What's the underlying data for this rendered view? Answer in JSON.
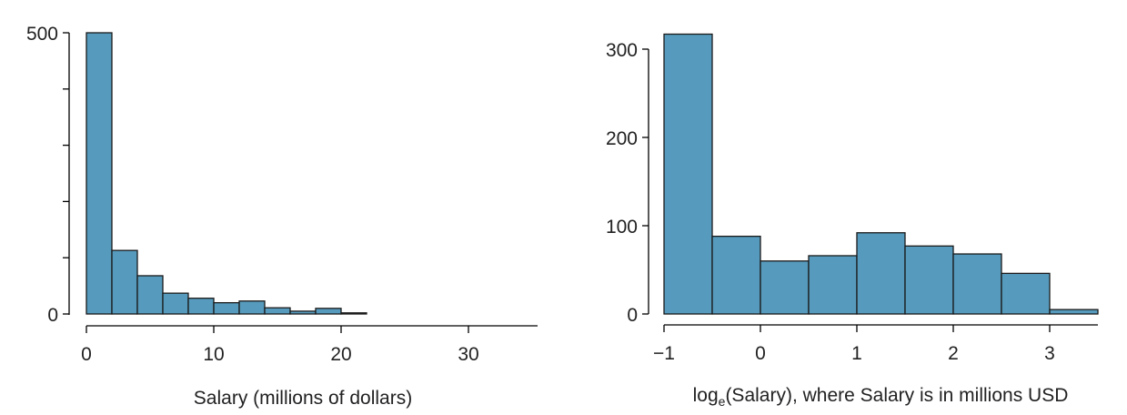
{
  "chart_data": [
    {
      "type": "bar",
      "histogram": true,
      "title": "",
      "xlabel": "Salary (millions of dollars)",
      "ylabel": "",
      "bin_edges": [
        0,
        2,
        4,
        6,
        8,
        10,
        12,
        14,
        16,
        18,
        20,
        22,
        24,
        26,
        28,
        30,
        32,
        34
      ],
      "values": [
        500,
        113,
        68,
        37,
        28,
        20,
        23,
        11,
        5,
        10,
        2,
        0,
        0,
        0,
        0,
        0,
        0
      ],
      "xlim": [
        0,
        35
      ],
      "ylim": [
        0,
        500
      ],
      "x_ticks": [
        "0",
        "10",
        "20",
        "30"
      ],
      "y_ticks": [
        "0",
        "500"
      ],
      "y_minor_ticks": [
        100,
        200,
        300,
        400
      ],
      "grid": false
    },
    {
      "type": "bar",
      "histogram": true,
      "title": "",
      "xlabel": "log(Salary), where Salary is in millions USD",
      "xlabel_parts": {
        "pre": "log",
        "sub": "e",
        "post": "(Salary), where Salary is in millions USD"
      },
      "ylabel": "",
      "bin_edges": [
        -1,
        -0.5,
        0,
        0.5,
        1,
        1.5,
        2,
        2.5,
        3,
        3.5
      ],
      "values": [
        317,
        88,
        60,
        66,
        92,
        77,
        68,
        46,
        5
      ],
      "xlim": [
        -1,
        3.5
      ],
      "ylim": [
        0,
        300
      ],
      "x_ticks": [
        "−1",
        "0",
        "1",
        "2",
        "3"
      ],
      "y_ticks": [
        "0",
        "100",
        "200",
        "300"
      ],
      "grid": false
    }
  ]
}
